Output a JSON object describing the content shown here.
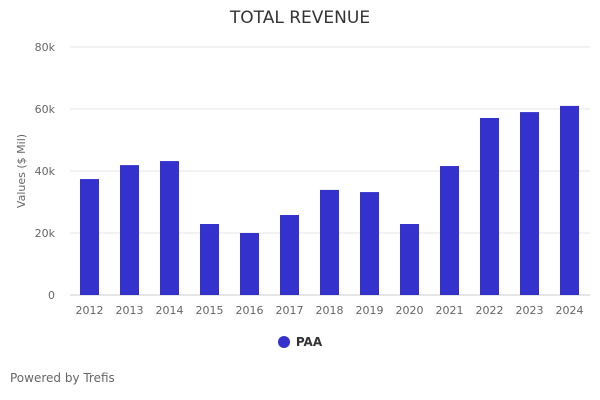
{
  "chart_data": {
    "type": "bar",
    "title": "TOTAL REVENUE",
    "xlabel": "",
    "ylabel": "Values ($ Mil)",
    "ylim": [
      0,
      80000
    ],
    "yticks": [
      0,
      20000,
      40000,
      60000,
      80000
    ],
    "ytick_labels": [
      "0",
      "20k",
      "40k",
      "60k",
      "80k"
    ],
    "categories": [
      "2012",
      "2013",
      "2014",
      "2015",
      "2016",
      "2017",
      "2018",
      "2019",
      "2020",
      "2021",
      "2022",
      "2023",
      "2024"
    ],
    "series": [
      {
        "name": "PAA",
        "color": "#3431cc",
        "values": [
          37400,
          41900,
          43200,
          22900,
          20000,
          25800,
          33900,
          33200,
          22900,
          41600,
          57100,
          59000,
          61000
        ]
      }
    ],
    "grid": true,
    "legend_position": "bottom-center"
  },
  "footer": {
    "credit": "Powered by Trefis"
  }
}
